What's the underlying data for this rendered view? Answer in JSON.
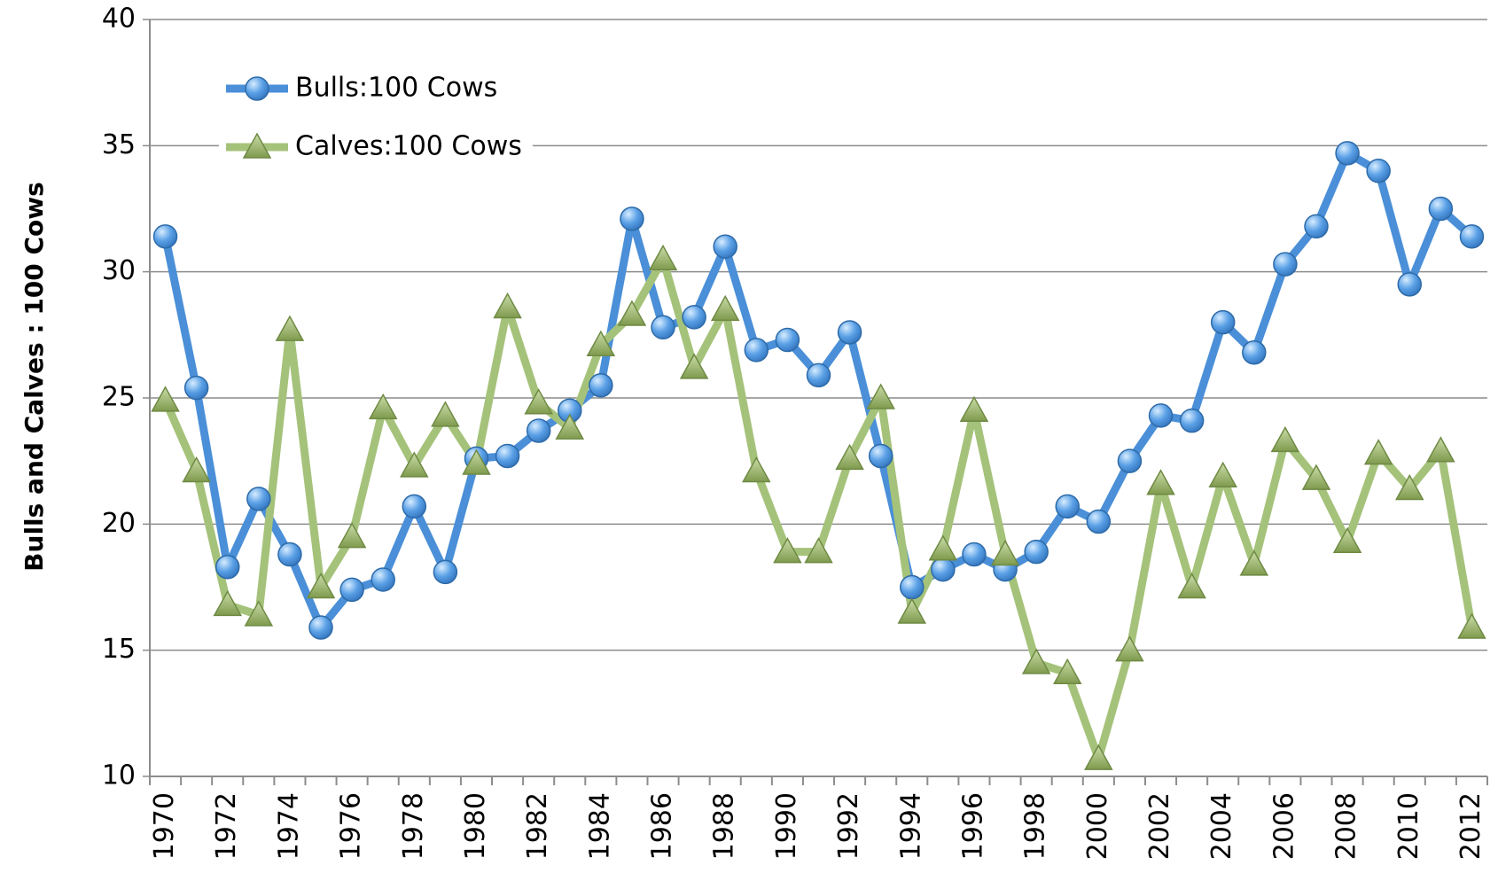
{
  "chart_data": {
    "type": "line",
    "y_label": "Bulls and Calves : 100 Cows",
    "x": [
      1970,
      1971,
      1972,
      1973,
      1974,
      1975,
      1976,
      1977,
      1978,
      1979,
      1980,
      1981,
      1982,
      1983,
      1984,
      1985,
      1986,
      1987,
      1988,
      1989,
      1990,
      1991,
      1992,
      1993,
      1994,
      1995,
      1996,
      1997,
      1998,
      1999,
      2000,
      2001,
      2002,
      2003,
      2004,
      2005,
      2006,
      2007,
      2008,
      2009,
      2010,
      2011,
      2012
    ],
    "series": [
      {
        "name": "Bulls:100 Cows",
        "color": "#4a8fd8",
        "marker": "circle",
        "values": [
          31.4,
          25.4,
          18.3,
          21.0,
          18.8,
          15.9,
          17.4,
          17.8,
          20.7,
          18.1,
          22.6,
          22.7,
          23.7,
          24.5,
          25.5,
          32.1,
          27.8,
          28.2,
          31.0,
          26.9,
          27.3,
          25.9,
          27.6,
          22.7,
          17.5,
          18.2,
          18.8,
          18.2,
          18.9,
          20.7,
          20.1,
          22.5,
          24.3,
          24.1,
          28.0,
          26.8,
          30.3,
          31.8,
          34.7,
          34.0,
          29.5,
          32.5,
          31.4
        ]
      },
      {
        "name": "Calves:100 Cows",
        "color": "#a5c27a",
        "marker": "triangle",
        "values": [
          24.9,
          22.1,
          16.8,
          16.4,
          27.7,
          17.5,
          19.5,
          24.6,
          22.3,
          24.3,
          22.4,
          28.6,
          24.8,
          23.8,
          27.1,
          28.3,
          30.5,
          26.2,
          28.5,
          22.1,
          18.9,
          18.9,
          22.6,
          25.0,
          16.5,
          19.0,
          24.5,
          18.8,
          14.5,
          14.1,
          10.7,
          15.0,
          21.6,
          17.5,
          21.9,
          18.4,
          23.3,
          21.8,
          19.3,
          22.8,
          21.4,
          22.9,
          15.9
        ]
      }
    ],
    "xlim": [
      1969.5,
      2012.5
    ],
    "xticks": [
      1970,
      1972,
      1974,
      1976,
      1978,
      1980,
      1982,
      1984,
      1986,
      1988,
      1990,
      1992,
      1994,
      1996,
      1998,
      2000,
      2002,
      2004,
      2006,
      2008,
      2010,
      2012
    ],
    "ylim": [
      10,
      40
    ],
    "yticks": [
      10,
      15,
      20,
      25,
      30,
      35,
      40
    ],
    "grid": true,
    "legend": "top-left"
  }
}
